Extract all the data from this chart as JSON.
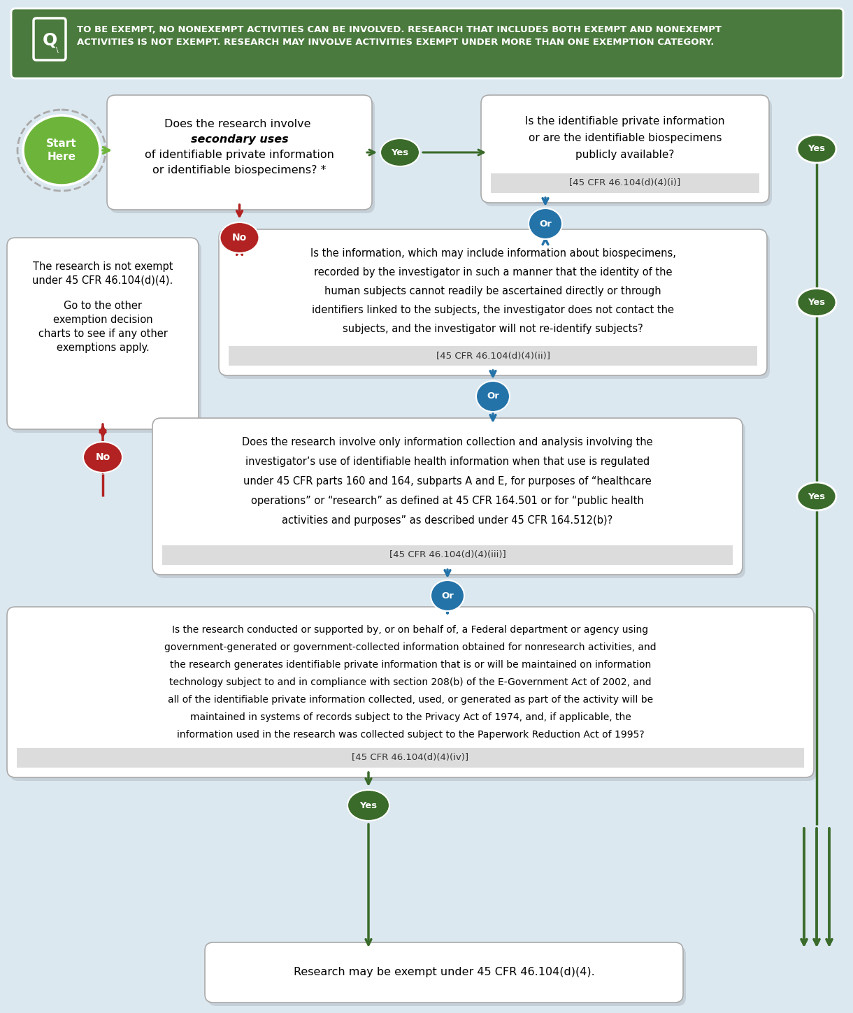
{
  "bg_color": "#dce8f0",
  "header_bg": "#4a7a3d",
  "header_text": "TO BE EXEMPT, NO NONEXEMPT ACTIVITIES CAN BE INVOLVED. RESEARCH THAT INCLUDES BOTH EXEMPT AND NONEXEMPT\nACTIVITIES IS NOT EXEMPT. RESEARCH MAY INVOLVE ACTIVITIES EXEMPT UNDER MORE THAN ONE EXEMPTION CATEGORY.",
  "green_bright": "#6db53a",
  "green_dark": "#3a6b2a",
  "red_color": "#b22222",
  "blue_color": "#2473a8",
  "box_bg": "#ffffff",
  "cite_bg": "#dcdcdc",
  "shadow_color": "#b0b8c0",
  "box2_text_lines": [
    "Is the identifiable private information",
    "or are the identifiable biospecimens",
    "publicly available?"
  ],
  "box2_cite": "[45 CFR 46.104(d)(4)(i)]",
  "box3_text_lines": [
    "Is the information, which may include information about biospecimens,",
    "recorded by the investigator in such a manner that the identity of the",
    "human subjects cannot readily be ascertained directly or through",
    "identifiers linked to the subjects, the investigator does not contact the",
    "subjects, and the investigator will not re-identify subjects?"
  ],
  "box3_cite": "[45 CFR 46.104(d)(4)(ii)]",
  "box4_text_lines": [
    "Does the research involve only information collection and analysis involving the",
    "investigator’s use of identifiable health information when that use is regulated",
    "under 45 CFR parts 160 and 164, subparts A and E, for purposes of “healthcare",
    "operations” or “research” as defined at 45 CFR 164.501 or for “public health",
    "activities and purposes” as described under 45 CFR 164.512(b)?"
  ],
  "box4_cite": "[45 CFR 46.104(d)(4)(iii)]",
  "box5_text_lines": [
    "Is the research conducted or supported by, or on behalf of, a Federal department or agency using",
    "government-generated or government-collected information obtained for nonresearch activities, and",
    "the research generates identifiable private information that is or will be maintained on information",
    "technology subject to and in compliance with section 208(b) of the E-Government Act of 2002, and",
    "all of the identifiable private information collected, used, or generated as part of the activity will be",
    "maintained in systems of records subject to the Privacy Act of 1974, and, if applicable, the",
    "information used in the research was collected subject to the Paperwork Reduction Act of 1995?"
  ],
  "box5_cite": "[45 CFR 46.104(d)(4)(iv)]",
  "no_box_line1": "The research is not exempt",
  "no_box_line2": "under 45 CFR 46.104(d)(4).",
  "no_box_line3": "Go to the other",
  "no_box_line4": "exemption decision",
  "no_box_line5": "charts to see if any other",
  "no_box_line6": "exemptions apply.",
  "final_text": "Research may be exempt under 45 CFR 46.104(d)(4)."
}
